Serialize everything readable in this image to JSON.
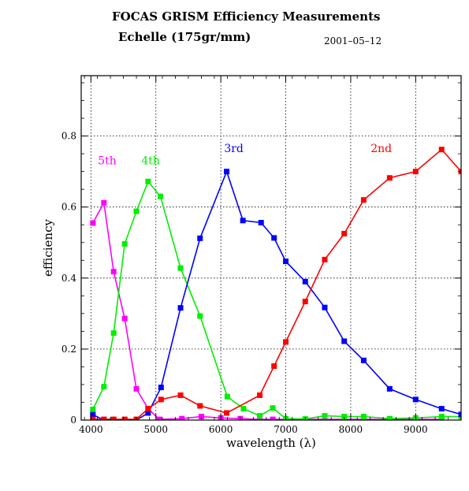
{
  "header": {
    "title": "FOCAS  GRISM  Efficiency  Measurements",
    "subtitle": "Echelle  (175gr/mm)",
    "date": "2001–05–12"
  },
  "chart_data": {
    "type": "line",
    "title": "FOCAS  GRISM  Efficiency  Measurements",
    "subtitle": "Echelle  (175gr/mm)",
    "xlabel": "wavelength  (λ)",
    "ylabel": "efficiency",
    "xlim": [
      3850,
      9700
    ],
    "ylim": [
      0,
      0.97
    ],
    "xticks": [
      4000,
      5000,
      6000,
      7000,
      8000,
      9000
    ],
    "yticks": [
      0,
      0.2,
      0.4,
      0.6,
      0.8
    ],
    "ytick_labels": [
      "0",
      "0.2",
      "0.4",
      "0.6",
      "0.8"
    ],
    "grid": true,
    "series": [
      {
        "name": "5th",
        "color": "#ff00ff",
        "x": [
          4030,
          4200,
          4350,
          4520,
          4700,
          4880,
          5050,
          5400,
          5700,
          6000,
          6300,
          6600,
          6800,
          7000,
          7300,
          7600,
          7900,
          8200,
          8600,
          9000,
          9400
        ],
        "y": [
          0.555,
          0.612,
          0.418,
          0.286,
          0.088,
          0.032,
          0.002,
          0.004,
          0.01,
          0.006,
          0.004,
          0.002,
          0.002,
          0.002,
          0.002,
          0.002,
          0.002,
          0.002,
          0.002,
          0.002,
          0.002
        ],
        "label_x": 4250,
        "label_y": 0.72
      },
      {
        "name": "4th",
        "color": "#00ee00",
        "x": [
          4030,
          4200,
          4350,
          4520,
          4700,
          4880,
          5070,
          5380,
          5680,
          6100,
          6350,
          6600,
          6800,
          7000,
          7300,
          7600,
          7900,
          8200,
          8600,
          9000,
          9400,
          9700
        ],
        "y": [
          0.03,
          0.094,
          0.245,
          0.496,
          0.588,
          0.672,
          0.63,
          0.428,
          0.293,
          0.066,
          0.032,
          0.012,
          0.034,
          0.004,
          0.003,
          0.012,
          0.01,
          0.01,
          0.004,
          0.006,
          0.01,
          0.01
        ],
        "label_x": 4920,
        "label_y": 0.72
      },
      {
        "name": "3rd",
        "color": "#0000ff",
        "x": [
          4030,
          4200,
          4350,
          4520,
          4700,
          4880,
          5080,
          5380,
          5680,
          6090,
          6340,
          6620,
          6820,
          7000,
          7300,
          7600,
          7900,
          8200,
          8600,
          9000,
          9400,
          9700
        ],
        "y": [
          0.015,
          0.0,
          0.0,
          0.0,
          0.0,
          0.02,
          0.092,
          0.316,
          0.512,
          0.7,
          0.562,
          0.556,
          0.513,
          0.447,
          0.39,
          0.317,
          0.222,
          0.168,
          0.088,
          0.058,
          0.032,
          0.016
        ],
        "label_x": 6200,
        "label_y": 0.755
      },
      {
        "name": "2nd",
        "color": "#ff0000",
        "x": [
          4030,
          4200,
          4350,
          4520,
          4700,
          4880,
          5080,
          5380,
          5680,
          6090,
          6600,
          6820,
          7000,
          7300,
          7600,
          7900,
          8200,
          8600,
          9000,
          9400,
          9700
        ],
        "y": [
          0.002,
          0.002,
          0.002,
          0.002,
          0.002,
          0.032,
          0.058,
          0.07,
          0.04,
          0.02,
          0.07,
          0.152,
          0.22,
          0.334,
          0.452,
          0.525,
          0.62,
          0.682,
          0.7,
          0.762,
          0.7
        ],
        "label_x": 8470,
        "label_y": 0.755
      }
    ]
  }
}
